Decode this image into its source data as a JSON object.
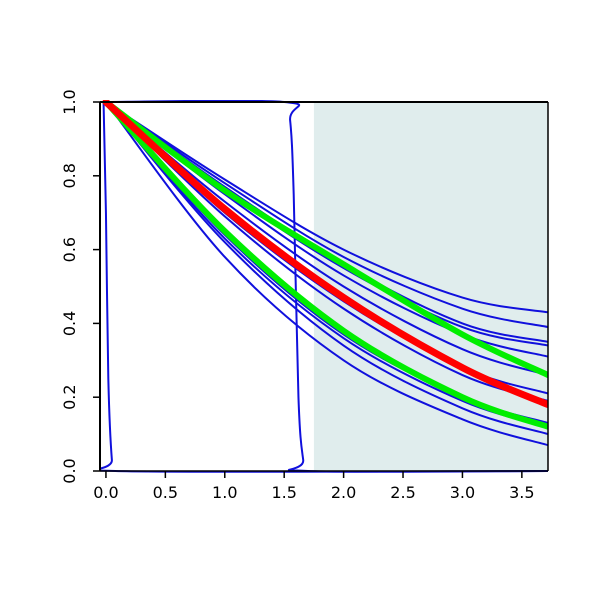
{
  "chart_data": {
    "type": "line",
    "title": "",
    "xlabel": "",
    "ylabel": "",
    "xlim": [
      -0.05,
      3.72
    ],
    "ylim": [
      0.0,
      1.0
    ],
    "grid": false,
    "legend": "none",
    "x_ticks": [
      0.0,
      0.5,
      1.0,
      1.5,
      2.0,
      2.5,
      3.0,
      3.5
    ],
    "x_tick_labels": [
      "0.0",
      "0.5",
      "1.0",
      "1.5",
      "2.0",
      "2.5",
      "3.0",
      "3.5"
    ],
    "y_ticks": [
      0.0,
      0.2,
      0.4,
      0.6,
      0.8,
      1.0
    ],
    "y_tick_labels": [
      "0.0",
      "0.2",
      "0.4",
      "0.6",
      "0.8",
      "1.0"
    ],
    "shaded_region": {
      "x_start": 1.75,
      "x_end": 3.72,
      "color": "#e0eded"
    },
    "colors": {
      "curve": "#1010dd",
      "highlight_red": "#ff0000",
      "highlight_green": "#00ee00",
      "frame": "#000000"
    },
    "series": [
      {
        "color": "blue",
        "x": [
          0,
          1.0,
          2.0,
          3.0,
          3.72
        ],
        "y": [
          1.0,
          0.79,
          0.6,
          0.47,
          0.43
        ]
      },
      {
        "color": "blue",
        "x": [
          0,
          1.0,
          2.0,
          3.0,
          3.72
        ],
        "y": [
          1.0,
          0.78,
          0.58,
          0.44,
          0.39
        ]
      },
      {
        "color": "blue",
        "x": [
          0,
          1.0,
          2.0,
          3.0,
          3.72
        ],
        "y": [
          1.0,
          0.77,
          0.56,
          0.4,
          0.35
        ]
      },
      {
        "color": "blue",
        "x": [
          0,
          1.0,
          2.0,
          3.0,
          3.72
        ],
        "y": [
          1.0,
          0.76,
          0.55,
          0.39,
          0.34
        ]
      },
      {
        "color": "blue",
        "x": [
          0,
          1.0,
          2.0,
          3.0,
          3.72
        ],
        "y": [
          1.0,
          0.75,
          0.53,
          0.37,
          0.31
        ]
      },
      {
        "color": "blue",
        "x": [
          0,
          1.0,
          2.0,
          3.0,
          3.72
        ],
        "y": [
          1.0,
          0.73,
          0.5,
          0.33,
          0.26
        ]
      },
      {
        "color": "blue",
        "x": [
          0,
          1.0,
          2.0,
          3.0,
          3.72
        ],
        "y": [
          1.0,
          0.7,
          0.46,
          0.28,
          0.21
        ]
      },
      {
        "color": "blue",
        "x": [
          0,
          1.0,
          2.0,
          3.0,
          3.72
        ],
        "y": [
          1.0,
          0.69,
          0.44,
          0.26,
          0.19
        ]
      },
      {
        "color": "blue",
        "x": [
          0,
          1.0,
          2.0,
          3.0,
          3.72
        ],
        "y": [
          1.0,
          0.64,
          0.37,
          0.2,
          0.13
        ]
      },
      {
        "color": "blue",
        "x": [
          0,
          1.0,
          2.0,
          3.0,
          3.72
        ],
        "y": [
          1.0,
          0.63,
          0.36,
          0.19,
          0.12
        ]
      },
      {
        "color": "blue",
        "x": [
          0,
          1.0,
          2.0,
          3.0,
          3.72
        ],
        "y": [
          1.0,
          0.62,
          0.34,
          0.17,
          0.1
        ]
      },
      {
        "color": "blue",
        "x": [
          0,
          1.0,
          2.0,
          3.0,
          3.72
        ],
        "y": [
          1.0,
          0.58,
          0.3,
          0.14,
          0.07
        ]
      },
      {
        "color": "blue",
        "x": [
          0,
          1.5,
          1.55,
          1.58,
          1.62,
          1.66,
          1.7,
          3.72
        ],
        "y": [
          1.0,
          1.0,
          0.95,
          0.75,
          0.2,
          0.03,
          0.0,
          0.0
        ]
      },
      {
        "color": "blue",
        "x": [
          -0.02,
          0.0,
          0.02,
          0.05,
          0.08,
          3.72
        ],
        "y": [
          1.0,
          0.7,
          0.25,
          0.03,
          0.0,
          0.0
        ]
      },
      {
        "color": "red",
        "x": [
          0,
          1.0,
          2.0,
          3.0,
          3.72
        ],
        "y": [
          1.0,
          0.71,
          0.47,
          0.28,
          0.18
        ]
      },
      {
        "color": "green",
        "x": [
          0,
          1.0,
          2.0,
          3.0,
          3.72
        ],
        "y": [
          1.0,
          0.76,
          0.56,
          0.37,
          0.26
        ]
      },
      {
        "color": "green",
        "x": [
          0,
          1.0,
          2.0,
          3.0,
          3.72
        ],
        "y": [
          1.0,
          0.65,
          0.38,
          0.2,
          0.12
        ]
      }
    ]
  }
}
